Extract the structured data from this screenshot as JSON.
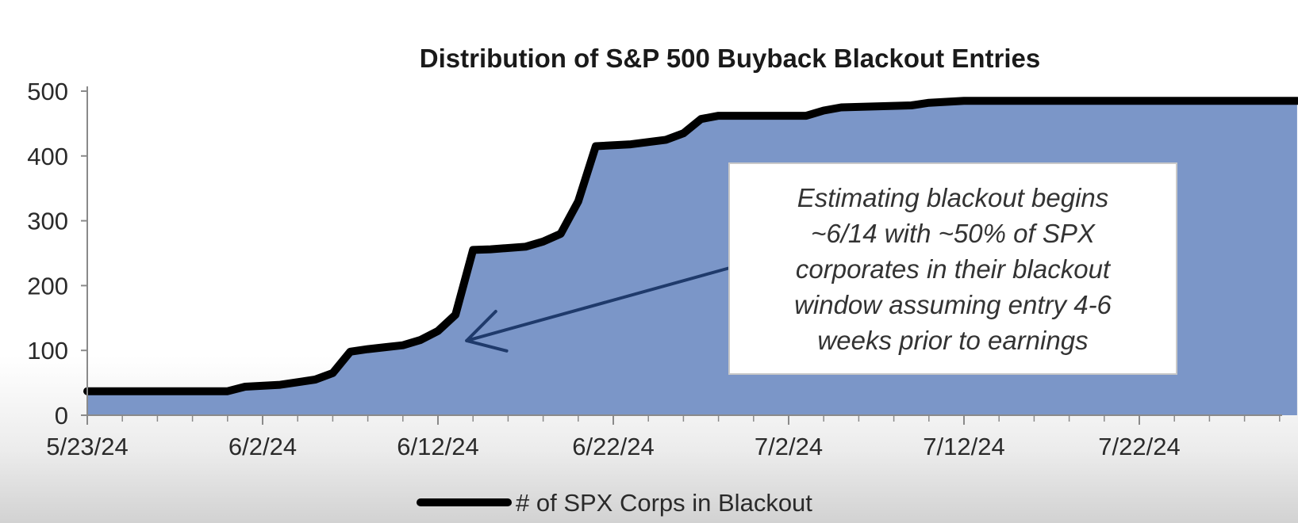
{
  "chart_data": {
    "type": "area",
    "title": "Distribution of S&P 500 Buyback Blackout Entries",
    "xlabel": "",
    "ylabel": "",
    "ylim": [
      0,
      500
    ],
    "y_ticks": [
      0,
      100,
      200,
      300,
      400,
      500
    ],
    "xlim": [
      "5/23/24",
      "7/31/24"
    ],
    "x_tick_labels": [
      "5/23/24",
      "6/2/24",
      "6/12/24",
      "6/22/24",
      "7/2/24",
      "7/12/24",
      "7/22/24"
    ],
    "grid": false,
    "legend_position": "bottom",
    "series": [
      {
        "name": "# of SPX Corps in Blackout",
        "line_color": "#000000",
        "fill_color": "#7B96C8",
        "points": [
          {
            "x": "5/23/24",
            "y": 37
          },
          {
            "x": "5/24/24",
            "y": 37
          },
          {
            "x": "5/31/24",
            "y": 37
          },
          {
            "x": "6/1/24",
            "y": 44
          },
          {
            "x": "6/3/24",
            "y": 47
          },
          {
            "x": "6/5/24",
            "y": 55
          },
          {
            "x": "6/6/24",
            "y": 65
          },
          {
            "x": "6/7/24",
            "y": 98
          },
          {
            "x": "6/8/24",
            "y": 102
          },
          {
            "x": "6/9/24",
            "y": 105
          },
          {
            "x": "6/10/24",
            "y": 108
          },
          {
            "x": "6/11/24",
            "y": 116
          },
          {
            "x": "6/12/24",
            "y": 130
          },
          {
            "x": "6/13/24",
            "y": 155
          },
          {
            "x": "6/14/24",
            "y": 255
          },
          {
            "x": "6/15/24",
            "y": 256
          },
          {
            "x": "6/17/24",
            "y": 260
          },
          {
            "x": "6/18/24",
            "y": 268
          },
          {
            "x": "6/19/24",
            "y": 280
          },
          {
            "x": "6/20/24",
            "y": 330
          },
          {
            "x": "6/21/24",
            "y": 415
          },
          {
            "x": "6/23/24",
            "y": 418
          },
          {
            "x": "6/25/24",
            "y": 425
          },
          {
            "x": "6/26/24",
            "y": 435
          },
          {
            "x": "6/27/24",
            "y": 457
          },
          {
            "x": "6/28/24",
            "y": 462
          },
          {
            "x": "7/3/24",
            "y": 462
          },
          {
            "x": "7/4/24",
            "y": 470
          },
          {
            "x": "7/5/24",
            "y": 475
          },
          {
            "x": "7/9/24",
            "y": 478
          },
          {
            "x": "7/10/24",
            "y": 482
          },
          {
            "x": "7/12/24",
            "y": 485
          },
          {
            "x": "7/31/24",
            "y": 485
          }
        ]
      }
    ],
    "annotation": {
      "text": "Estimating blackout begins\n~6/14 with ~50% of SPX\ncorporates in their blackout\nwindow  assuming entry 4-6\nweeks prior to earnings",
      "arrow_target": {
        "x": "6/14/24",
        "y": 115
      },
      "arrow_color": "#1F3A6B"
    }
  }
}
